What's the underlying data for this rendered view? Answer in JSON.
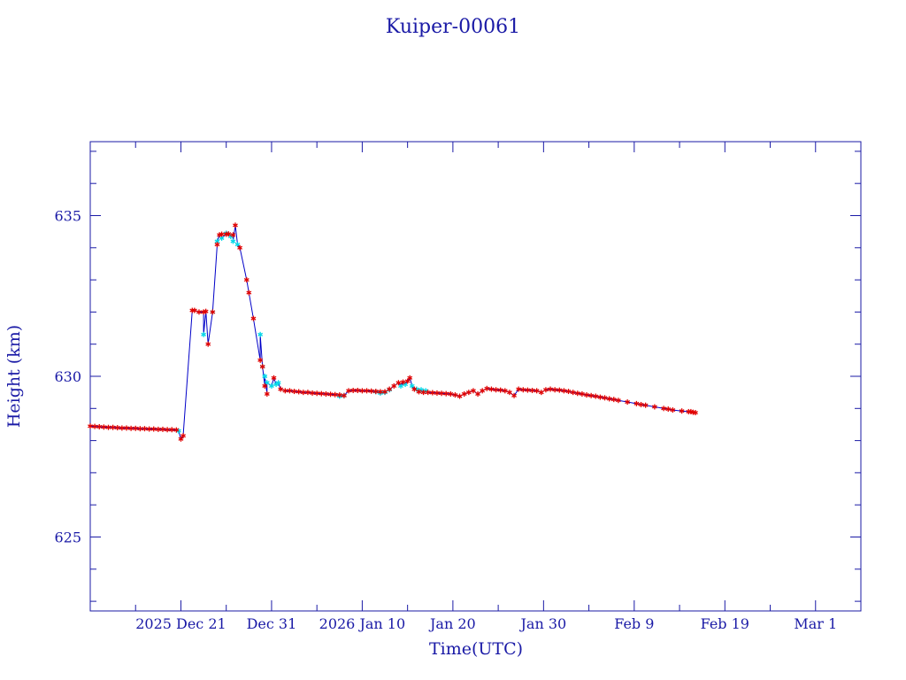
{
  "chart_data": {
    "type": "line",
    "title": "Kuiper-00061",
    "xlabel": "Time(UTC)",
    "ylabel": "Height (km)",
    "ylim": [
      622.7,
      637.3
    ],
    "xlim": [
      "2025-12-11",
      "2026-03-06"
    ],
    "grid": false,
    "legend": "none",
    "y_ticks": [
      625,
      630,
      635
    ],
    "x_tick_labels": [
      "2025 Dec 21",
      "Dec 31",
      "2026 Jan 10",
      "Jan 20",
      "Jan 30",
      "Feb 9",
      "Feb 19",
      "Mar 1"
    ],
    "x_tick_dates": [
      "2025-12-21",
      "2025-12-31",
      "2026-01-10",
      "2026-01-20",
      "2026-01-30",
      "2026-02-09",
      "2026-02-19",
      "2026-03-01"
    ],
    "x_minor_dates": [
      "2025-12-16",
      "2025-12-26",
      "2026-01-05",
      "2026-01-15",
      "2026-01-25",
      "2026-02-04",
      "2026-02-14",
      "2026-02-24"
    ],
    "colors": {
      "axis": "#1a1aa6",
      "line": "#0000c8",
      "marker_primary": "#e00000",
      "marker_secondary": "#00d8e8"
    },
    "series": [
      {
        "marker": "primary",
        "points": [
          [
            "2025-12-11 00:00",
            628.45
          ],
          [
            "2025-12-11 12:00",
            628.44
          ],
          [
            "2025-12-12 00:00",
            628.43
          ],
          [
            "2025-12-12 12:00",
            628.42
          ],
          [
            "2025-12-13 00:00",
            628.41
          ],
          [
            "2025-12-13 12:00",
            628.41
          ],
          [
            "2025-12-14 00:00",
            628.4
          ],
          [
            "2025-12-14 12:00",
            628.39
          ],
          [
            "2025-12-15 00:00",
            628.39
          ],
          [
            "2025-12-15 12:00",
            628.38
          ],
          [
            "2025-12-16 00:00",
            628.38
          ],
          [
            "2025-12-16 12:00",
            628.37
          ],
          [
            "2025-12-17 00:00",
            628.37
          ],
          [
            "2025-12-17 12:00",
            628.36
          ],
          [
            "2025-12-18 00:00",
            628.36
          ],
          [
            "2025-12-18 12:00",
            628.35
          ],
          [
            "2025-12-19 00:00",
            628.35
          ],
          [
            "2025-12-19 12:00",
            628.34
          ],
          [
            "2025-12-20 00:00",
            628.34
          ],
          [
            "2025-12-20 12:00",
            628.33
          ],
          [
            "2025-12-21 00:00",
            628.05
          ],
          [
            "2025-12-21 06:00",
            628.15
          ],
          [
            "2025-12-22 06:00",
            632.05
          ],
          [
            "2025-12-22 12:00",
            632.05
          ],
          [
            "2025-12-23 00:00",
            632.0
          ],
          [
            "2025-12-23 12:00",
            632.0
          ],
          [
            "2025-12-23 18:00",
            632.02
          ],
          [
            "2025-12-24 00:00",
            631.0
          ],
          [
            "2025-12-24 12:00",
            632.0
          ],
          [
            "2025-12-25 00:00",
            634.1
          ],
          [
            "2025-12-25 06:00",
            634.4
          ],
          [
            "2025-12-25 12:00",
            634.42
          ],
          [
            "2025-12-26 00:00",
            634.42
          ],
          [
            "2025-12-26 06:00",
            634.43
          ],
          [
            "2025-12-26 18:00",
            634.4
          ],
          [
            "2025-12-27 00:00",
            634.7
          ],
          [
            "2025-12-27 12:00",
            634.0
          ],
          [
            "2025-12-28 06:00",
            633.0
          ],
          [
            "2025-12-28 12:00",
            632.6
          ],
          [
            "2025-12-29 00:00",
            631.8
          ],
          [
            "2025-12-29 18:00",
            630.5
          ],
          [
            "2025-12-30 00:00",
            630.3
          ],
          [
            "2025-12-30 06:00",
            629.7
          ],
          [
            "2025-12-30 12:00",
            629.45
          ],
          [
            "2025-12-31 06:00",
            629.95
          ],
          [
            "2026-01-01 00:00",
            629.6
          ],
          [
            "2026-01-01 12:00",
            629.55
          ],
          [
            "2026-01-02 00:00",
            629.55
          ],
          [
            "2026-01-02 12:00",
            629.53
          ],
          [
            "2026-01-03 00:00",
            629.52
          ],
          [
            "2026-01-03 12:00",
            629.5
          ],
          [
            "2026-01-04 00:00",
            629.5
          ],
          [
            "2026-01-04 12:00",
            629.48
          ],
          [
            "2026-01-05 00:00",
            629.47
          ],
          [
            "2026-01-05 12:00",
            629.46
          ],
          [
            "2026-01-06 00:00",
            629.45
          ],
          [
            "2026-01-06 12:00",
            629.44
          ],
          [
            "2026-01-07 00:00",
            629.43
          ],
          [
            "2026-01-07 12:00",
            629.42
          ],
          [
            "2026-01-08 00:00",
            629.4
          ],
          [
            "2026-01-08 12:00",
            629.55
          ],
          [
            "2026-01-09 00:00",
            629.56
          ],
          [
            "2026-01-09 12:00",
            629.56
          ],
          [
            "2026-01-10 00:00",
            629.55
          ],
          [
            "2026-01-10 12:00",
            629.55
          ],
          [
            "2026-01-11 00:00",
            629.54
          ],
          [
            "2026-01-11 12:00",
            629.53
          ],
          [
            "2026-01-12 00:00",
            629.52
          ],
          [
            "2026-01-12 12:00",
            629.52
          ],
          [
            "2026-01-13 00:00",
            629.6
          ],
          [
            "2026-01-13 12:00",
            629.7
          ],
          [
            "2026-01-14 00:00",
            629.8
          ],
          [
            "2026-01-14 12:00",
            629.82
          ],
          [
            "2026-01-15 00:00",
            629.85
          ],
          [
            "2026-01-15 06:00",
            629.95
          ],
          [
            "2026-01-15 18:00",
            629.6
          ],
          [
            "2026-01-16 06:00",
            629.52
          ],
          [
            "2026-01-16 18:00",
            629.5
          ],
          [
            "2026-01-17 06:00",
            629.5
          ],
          [
            "2026-01-17 18:00",
            629.49
          ],
          [
            "2026-01-18 06:00",
            629.48
          ],
          [
            "2026-01-18 18:00",
            629.47
          ],
          [
            "2026-01-19 06:00",
            629.46
          ],
          [
            "2026-01-19 18:00",
            629.45
          ],
          [
            "2026-01-20 06:00",
            629.42
          ],
          [
            "2026-01-20 18:00",
            629.38
          ],
          [
            "2026-01-21 06:00",
            629.45
          ],
          [
            "2026-01-21 18:00",
            629.5
          ],
          [
            "2026-01-22 06:00",
            629.55
          ],
          [
            "2026-01-22 18:00",
            629.45
          ],
          [
            "2026-01-23 06:00",
            629.55
          ],
          [
            "2026-01-23 18:00",
            629.62
          ],
          [
            "2026-01-24 06:00",
            629.6
          ],
          [
            "2026-01-24 18:00",
            629.58
          ],
          [
            "2026-01-25 06:00",
            629.57
          ],
          [
            "2026-01-25 18:00",
            629.55
          ],
          [
            "2026-01-26 06:00",
            629.5
          ],
          [
            "2026-01-26 18:00",
            629.4
          ],
          [
            "2026-01-27 06:00",
            629.6
          ],
          [
            "2026-01-27 18:00",
            629.58
          ],
          [
            "2026-01-28 06:00",
            629.57
          ],
          [
            "2026-01-28 18:00",
            629.56
          ],
          [
            "2026-01-29 06:00",
            629.55
          ],
          [
            "2026-01-29 18:00",
            629.5
          ],
          [
            "2026-01-30 06:00",
            629.58
          ],
          [
            "2026-01-30 18:00",
            629.6
          ],
          [
            "2026-01-31 06:00",
            629.58
          ],
          [
            "2026-01-31 18:00",
            629.57
          ],
          [
            "2026-02-01 06:00",
            629.55
          ],
          [
            "2026-02-01 18:00",
            629.53
          ],
          [
            "2026-02-02 06:00",
            629.5
          ],
          [
            "2026-02-02 18:00",
            629.47
          ],
          [
            "2026-02-03 06:00",
            629.45
          ],
          [
            "2026-02-03 18:00",
            629.42
          ],
          [
            "2026-02-04 06:00",
            629.4
          ],
          [
            "2026-02-04 18:00",
            629.38
          ],
          [
            "2026-02-05 06:00",
            629.35
          ],
          [
            "2026-02-05 18:00",
            629.33
          ],
          [
            "2026-02-06 06:00",
            629.3
          ],
          [
            "2026-02-06 18:00",
            629.28
          ],
          [
            "2026-02-07 06:00",
            629.25
          ],
          [
            "2026-02-08 06:00",
            629.2
          ],
          [
            "2026-02-09 06:00",
            629.15
          ],
          [
            "2026-02-09 18:00",
            629.12
          ],
          [
            "2026-02-10 06:00",
            629.1
          ],
          [
            "2026-02-11 06:00",
            629.05
          ],
          [
            "2026-02-12 06:00",
            629.0
          ],
          [
            "2026-02-12 18:00",
            628.98
          ],
          [
            "2026-02-13 06:00",
            628.95
          ],
          [
            "2026-02-14 06:00",
            628.92
          ],
          [
            "2026-02-15 00:00",
            628.9
          ],
          [
            "2026-02-15 06:00",
            628.9
          ],
          [
            "2026-02-15 12:00",
            628.88
          ],
          [
            "2026-02-15 18:00",
            628.87
          ]
        ]
      },
      {
        "marker": "secondary",
        "points": [
          [
            "2025-12-20 18:00",
            628.3
          ],
          [
            "2025-12-23 12:00",
            631.3
          ],
          [
            "2025-12-24 12:00",
            632.0
          ],
          [
            "2025-12-25 00:00",
            634.2
          ],
          [
            "2025-12-25 12:00",
            634.3
          ],
          [
            "2025-12-26 00:00",
            634.45
          ],
          [
            "2025-12-26 12:00",
            634.35
          ],
          [
            "2025-12-26 18:00",
            634.2
          ],
          [
            "2025-12-27 06:00",
            634.1
          ],
          [
            "2025-12-29 18:00",
            631.3
          ],
          [
            "2025-12-30 00:00",
            630.3
          ],
          [
            "2025-12-30 06:00",
            630.0
          ],
          [
            "2025-12-30 12:00",
            629.8
          ],
          [
            "2025-12-31 00:00",
            629.7
          ],
          [
            "2025-12-31 12:00",
            629.75
          ],
          [
            "2025-12-31 18:00",
            629.8
          ],
          [
            "2026-01-07 12:00",
            629.38
          ],
          [
            "2026-01-08 00:00",
            629.4
          ],
          [
            "2026-01-11 12:00",
            629.52
          ],
          [
            "2026-01-12 00:00",
            629.48
          ],
          [
            "2026-01-12 12:00",
            629.5
          ],
          [
            "2026-01-13 00:00",
            629.58
          ],
          [
            "2026-01-14 06:00",
            629.7
          ],
          [
            "2026-01-14 18:00",
            629.75
          ],
          [
            "2026-01-15 12:00",
            629.7
          ],
          [
            "2026-01-16 00:00",
            629.6
          ],
          [
            "2026-01-16 12:00",
            629.58
          ],
          [
            "2026-01-17 00:00",
            629.55
          ]
        ]
      }
    ]
  }
}
